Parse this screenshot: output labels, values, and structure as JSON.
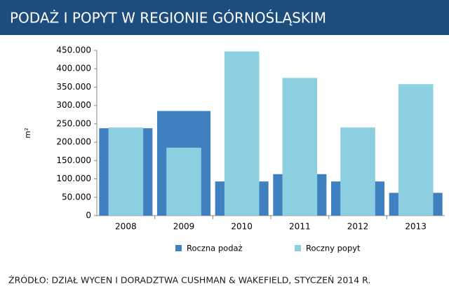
{
  "chart_data": {
    "type": "overlap-bar",
    "title": "PODAŻ I POPYT W REGIONIE GÓRNOŚLĄSKIM",
    "y_label": "m²",
    "categories": [
      "2008",
      "2009",
      "2010",
      "2011",
      "2012",
      "2013"
    ],
    "series": [
      {
        "name": "Roczna podaż",
        "color": "#3f80c0",
        "values": [
          238000,
          285000,
          93000,
          113000,
          93000,
          62000
        ]
      },
      {
        "name": "Roczny popyt",
        "color": "#8ccfe0",
        "values": [
          240000,
          185000,
          447000,
          375000,
          240000,
          358000
        ]
      }
    ],
    "ylim": [
      0,
      450000
    ],
    "yticks": [
      0,
      {
        "value": 50000,
        "label": "50.000"
      },
      {
        "value": 100000,
        "label": "100.000"
      },
      {
        "value": 150000,
        "label": "150.000"
      },
      {
        "value": 200000,
        "label": "200.000"
      },
      {
        "value": 250000,
        "label": "250.000"
      },
      {
        "value": 300000,
        "label": "300.000"
      },
      {
        "value": 350000,
        "label": "350.000"
      },
      {
        "value": 400000,
        "label": "400.000"
      },
      {
        "value": 450000,
        "label": "450.000"
      }
    ],
    "legend": "bottom",
    "source": "ŹRÓDŁO: DZIAŁ WYCEN I DORADZTWA CUSHMAN & WAKEFIELD, STYCZEŃ 2014 R."
  }
}
